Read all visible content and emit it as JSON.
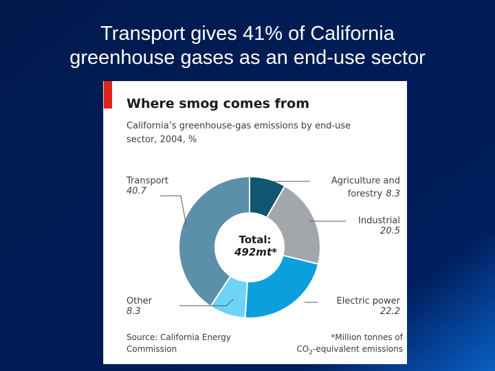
{
  "slide": {
    "title_line1": "Transport gives 41% of California",
    "title_line2": "greenhouse gases as an end-use sector"
  },
  "chart_data": {
    "type": "pie",
    "title": "Where smog comes from",
    "subtitle": "California’s greenhouse-gas emissions by end-use sector, 2004, %",
    "center_label": "Total:",
    "center_value": "492mt*",
    "slices": [
      {
        "name": "Agriculture and forestry",
        "value": 8.3,
        "color": "#0f5670"
      },
      {
        "name": "Industrial",
        "value": 20.5,
        "color": "#a3a6aa"
      },
      {
        "name": "Electric power",
        "value": 22.2,
        "color": "#0b9fdb"
      },
      {
        "name": "Other",
        "value": 8.3,
        "color": "#6fd2f7"
      },
      {
        "name": "Transport",
        "value": 40.7,
        "color": "#5c90aa"
      }
    ],
    "source": "Source: California Energy Commission",
    "footnote": "*Million tonnes of CO2-equivalent emissions"
  },
  "labels": {
    "agri_name1": "Agriculture and",
    "agri_name2": "forestry",
    "agri_value": "8.3",
    "industrial_name": "Industrial",
    "industrial_value": "20.5",
    "electric_name": "Electric power",
    "electric_value": "22.2",
    "other_name": "Other",
    "other_value": "8.3",
    "transport_name": "Transport",
    "transport_value": "40.7",
    "source_line1": "Source: California Energy",
    "source_line2": "Commission",
    "footnote_line1": "*Million tonnes of",
    "footnote_line2_pre": "CO",
    "footnote_line2_sub": "2",
    "footnote_line2_post": "-equivalent emissions"
  },
  "colors": {
    "background": "#001a4d",
    "accent_red": "#e2231a"
  }
}
